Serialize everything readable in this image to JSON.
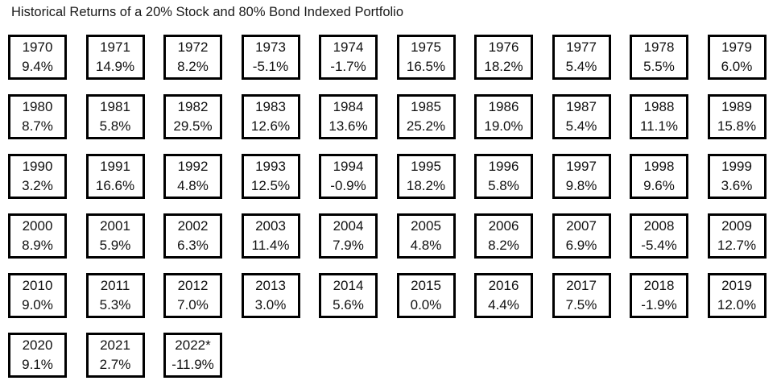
{
  "page": {
    "title": "Historical Returns of a 20% Stock and 80% Bond Indexed Portfolio"
  },
  "chart_data": {
    "type": "table",
    "title": "Historical Returns of a 20% Stock and 80% Bond Indexed Portfolio",
    "columns": 10,
    "cells": [
      {
        "year": "1970",
        "return": "9.4%"
      },
      {
        "year": "1971",
        "return": "14.9%"
      },
      {
        "year": "1972",
        "return": "8.2%"
      },
      {
        "year": "1973",
        "return": "-5.1%"
      },
      {
        "year": "1974",
        "return": "-1.7%"
      },
      {
        "year": "1975",
        "return": "16.5%"
      },
      {
        "year": "1976",
        "return": "18.2%"
      },
      {
        "year": "1977",
        "return": "5.4%"
      },
      {
        "year": "1978",
        "return": "5.5%"
      },
      {
        "year": "1979",
        "return": "6.0%"
      },
      {
        "year": "1980",
        "return": "8.7%"
      },
      {
        "year": "1981",
        "return": "5.8%"
      },
      {
        "year": "1982",
        "return": "29.5%"
      },
      {
        "year": "1983",
        "return": "12.6%"
      },
      {
        "year": "1984",
        "return": "13.6%"
      },
      {
        "year": "1985",
        "return": "25.2%"
      },
      {
        "year": "1986",
        "return": "19.0%"
      },
      {
        "year": "1987",
        "return": "5.4%"
      },
      {
        "year": "1988",
        "return": "11.1%"
      },
      {
        "year": "1989",
        "return": "15.8%"
      },
      {
        "year": "1990",
        "return": "3.2%"
      },
      {
        "year": "1991",
        "return": "16.6%"
      },
      {
        "year": "1992",
        "return": "4.8%"
      },
      {
        "year": "1993",
        "return": "12.5%"
      },
      {
        "year": "1994",
        "return": "-0.9%"
      },
      {
        "year": "1995",
        "return": "18.2%"
      },
      {
        "year": "1996",
        "return": "5.8%"
      },
      {
        "year": "1997",
        "return": "9.8%"
      },
      {
        "year": "1998",
        "return": "9.6%"
      },
      {
        "year": "1999",
        "return": "3.6%"
      },
      {
        "year": "2000",
        "return": "8.9%"
      },
      {
        "year": "2001",
        "return": "5.9%"
      },
      {
        "year": "2002",
        "return": "6.3%"
      },
      {
        "year": "2003",
        "return": "11.4%"
      },
      {
        "year": "2004",
        "return": "7.9%"
      },
      {
        "year": "2005",
        "return": "4.8%"
      },
      {
        "year": "2006",
        "return": "8.2%"
      },
      {
        "year": "2007",
        "return": "6.9%"
      },
      {
        "year": "2008",
        "return": "-5.4%"
      },
      {
        "year": "2009",
        "return": "12.7%"
      },
      {
        "year": "2010",
        "return": "9.0%"
      },
      {
        "year": "2011",
        "return": "5.3%"
      },
      {
        "year": "2012",
        "return": "7.0%"
      },
      {
        "year": "2013",
        "return": "3.0%"
      },
      {
        "year": "2014",
        "return": "5.6%"
      },
      {
        "year": "2015",
        "return": "0.0%"
      },
      {
        "year": "2016",
        "return": "4.4%"
      },
      {
        "year": "2017",
        "return": "7.5%"
      },
      {
        "year": "2018",
        "return": "-1.9%"
      },
      {
        "year": "2019",
        "return": "12.0%"
      },
      {
        "year": "2020",
        "return": "9.1%"
      },
      {
        "year": "2021",
        "return": "2.7%"
      },
      {
        "year": "2022*",
        "return": "-11.9%"
      }
    ]
  }
}
